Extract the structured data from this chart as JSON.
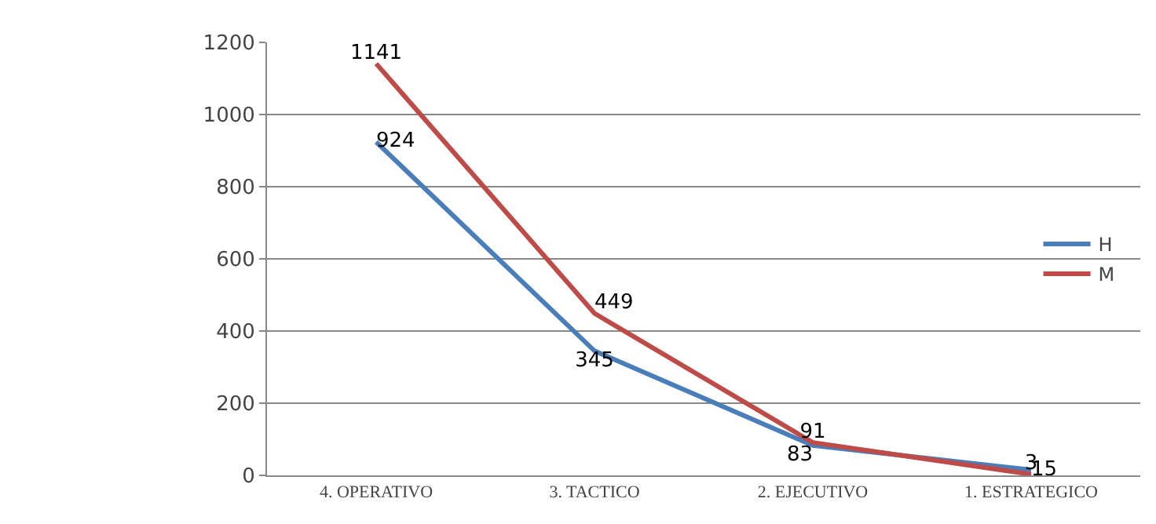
{
  "chart_data": {
    "type": "line",
    "categories": [
      "4. OPERATIVO",
      "3. TACTICO",
      "2. EJECUTIVO",
      "1. ESTRATEGICO"
    ],
    "series": [
      {
        "name": "H",
        "color": "#4a7ebb",
        "values": [
          924,
          345,
          83,
          15
        ]
      },
      {
        "name": "M",
        "color": "#be4b48",
        "values": [
          1141,
          449,
          91,
          3
        ]
      }
    ],
    "ylim": [
      0,
      1200
    ],
    "yticks": [
      0,
      200,
      400,
      600,
      800,
      1000,
      1200
    ],
    "grid": "y",
    "legend": "right",
    "data_labels": true,
    "marker": "none",
    "line_style": "solid"
  }
}
